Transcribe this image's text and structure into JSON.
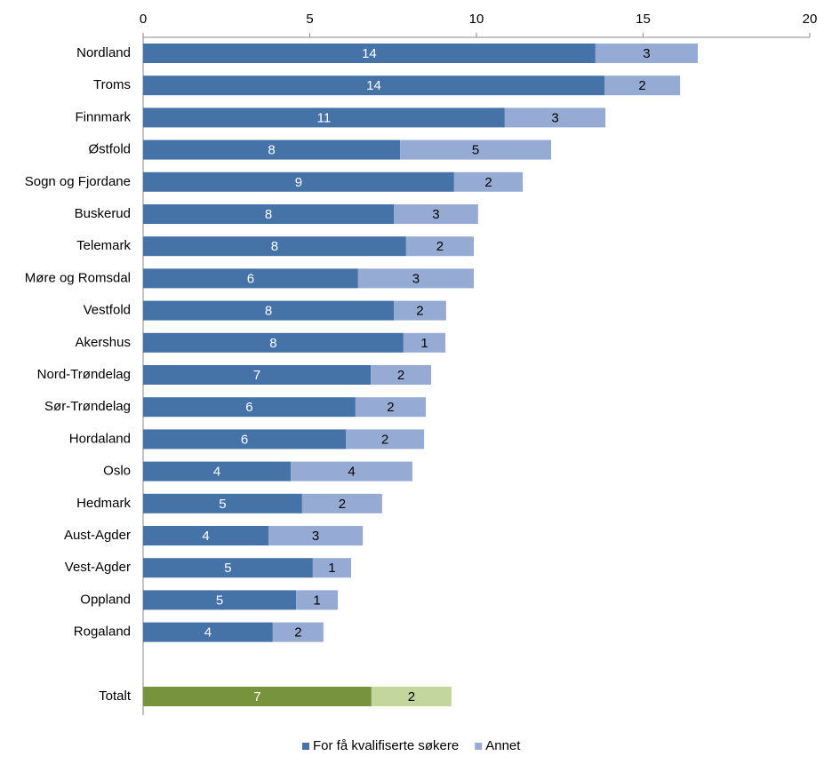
{
  "chart_data": {
    "type": "bar",
    "orientation": "horizontal",
    "stacked": true,
    "categories": [
      "Nordland",
      "Troms",
      "Finnmark",
      "Østfold",
      "Sogn og Fjordane",
      "Buskerud",
      "Telemark",
      "Møre og Romsdal",
      "Vestfold",
      "Akershus",
      "Nord-Trøndelag",
      "Sør-Trøndelag",
      "Hordaland",
      "Oslo",
      "Hedmark",
      "Aust-Agder",
      "Vest-Agder",
      "Oppland",
      "Rogaland",
      null,
      "Totalt"
    ],
    "series": [
      {
        "name": "For få kvalifiserte søkere",
        "color": "#4572a7",
        "highlight_color": "#77933c",
        "label_color": "#ffffff",
        "values": [
          13.57,
          13.84,
          10.85,
          7.71,
          9.33,
          7.52,
          7.89,
          6.45,
          7.52,
          7.81,
          6.83,
          6.37,
          6.08,
          4.43,
          4.77,
          3.76,
          5.09,
          4.59,
          3.89,
          null,
          6.85
        ],
        "value_labels": [
          "14",
          "14",
          "11",
          "8",
          "9",
          "8",
          "8",
          "6",
          "8",
          "8",
          "7",
          "6",
          "6",
          "4",
          "5",
          "4",
          "5",
          "5",
          "4",
          null,
          "7"
        ]
      },
      {
        "name": "Annet",
        "color": "#95abd4",
        "highlight_color": "#c3d69b",
        "label_color": "#000000",
        "values": [
          3.07,
          2.27,
          3.02,
          4.53,
          2.06,
          2.53,
          2.03,
          3.47,
          1.57,
          1.26,
          1.81,
          2.11,
          2.35,
          3.65,
          2.4,
          2.83,
          1.15,
          1.25,
          1.52,
          null,
          2.4
        ],
        "value_labels": [
          "3",
          "2",
          "3",
          "5",
          "2",
          "3",
          "2",
          "3",
          "2",
          "1",
          "2",
          "2",
          "2",
          "4",
          "2",
          "3",
          "1",
          "1",
          "2",
          null,
          "2"
        ]
      }
    ],
    "highlight_index": 20,
    "xlim": [
      0,
      20
    ],
    "xticks": [
      0,
      5,
      10,
      15,
      20
    ],
    "axis_position": "top",
    "legend": "bottom"
  }
}
